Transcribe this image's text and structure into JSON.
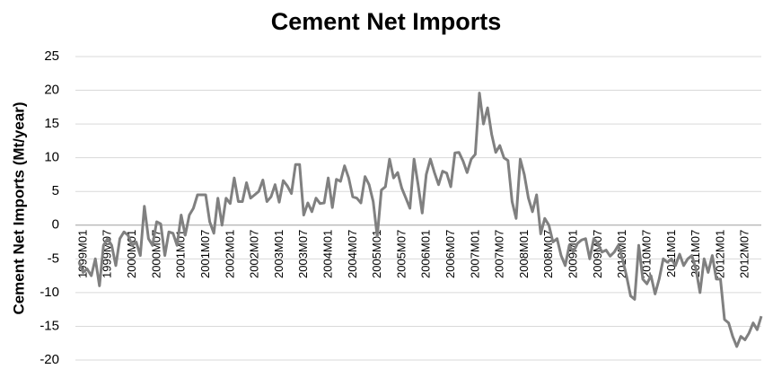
{
  "chart_data": {
    "type": "line",
    "title": "Cement Net Imports",
    "y_label": "Cement Net Imports (Mt/year)",
    "categories": [
      "1999M01",
      null,
      null,
      null,
      null,
      null,
      "1999M07",
      null,
      null,
      null,
      null,
      null,
      "2000M01",
      null,
      null,
      null,
      null,
      null,
      "2000M07",
      null,
      null,
      null,
      null,
      null,
      "2001M01",
      null,
      null,
      null,
      null,
      null,
      "2001M07",
      null,
      null,
      null,
      null,
      null,
      "2002M01",
      null,
      null,
      null,
      null,
      null,
      "2002M07",
      null,
      null,
      null,
      null,
      null,
      "2003M01",
      null,
      null,
      null,
      null,
      null,
      "2003M07",
      null,
      null,
      null,
      null,
      null,
      "2004M01",
      null,
      null,
      null,
      null,
      null,
      "2004M07",
      null,
      null,
      null,
      null,
      null,
      "2005M01",
      null,
      null,
      null,
      null,
      null,
      "2005M07",
      null,
      null,
      null,
      null,
      null,
      "2006M01",
      null,
      null,
      null,
      null,
      null,
      "2006M07",
      null,
      null,
      null,
      null,
      null,
      "2007M01",
      null,
      null,
      null,
      null,
      null,
      "2007M07",
      null,
      null,
      null,
      null,
      null,
      "2008M01",
      null,
      null,
      null,
      null,
      null,
      "2008M07",
      null,
      null,
      null,
      null,
      null,
      "2009M01",
      null,
      null,
      null,
      null,
      null,
      "2009M07",
      null,
      null,
      null,
      null,
      null,
      "2010M01",
      null,
      null,
      null,
      null,
      null,
      "2010M07",
      null,
      null,
      null,
      null,
      null,
      "2011M01",
      null,
      null,
      null,
      null,
      null,
      "2011M07",
      null,
      null,
      null,
      null,
      null,
      "2012M01",
      null,
      null,
      null,
      null,
      null,
      "2012M07",
      null,
      null,
      null,
      null,
      null
    ],
    "series": [
      {
        "name": "Cement Net Imports",
        "color": "#808080",
        "values": [
          -5.5,
          -7,
          -6.5,
          -7.5,
          -5,
          -9,
          -3,
          -2,
          -3,
          -6,
          -2,
          -1,
          -1.5,
          -3,
          -2.5,
          -4.5,
          2.8,
          -2,
          -3,
          0.5,
          0.2,
          -4.5,
          -1,
          -1.2,
          -3,
          1.5,
          -1.5,
          1.5,
          2.5,
          4.5,
          4.5,
          4.5,
          0.5,
          -1.2,
          4,
          0,
          4,
          3.2,
          7,
          3.5,
          3.5,
          6.3,
          4,
          4.5,
          5,
          6.7,
          3.5,
          4.2,
          6,
          3.4,
          6.6,
          5.8,
          4.7,
          9,
          9,
          1.5,
          3.3,
          2,
          4,
          3.2,
          3.3,
          7,
          2.6,
          6.8,
          6.5,
          8.8,
          7,
          4.2,
          4,
          3.3,
          7.2,
          6,
          3.5,
          -1.7,
          5.2,
          5.7,
          9.8,
          7,
          7.8,
          5.5,
          4,
          2.5,
          9.8,
          6,
          1.8,
          7.5,
          9.8,
          7.8,
          6,
          8,
          7.7,
          5.7,
          10.7,
          10.8,
          9.5,
          7.8,
          9.8,
          10.5,
          19.6,
          15,
          17.4,
          13.5,
          10.8,
          11.8,
          10,
          9.6,
          3.5,
          1,
          9.8,
          7.5,
          4,
          2,
          4.5,
          -1.3,
          1,
          0,
          -2.5,
          -2,
          -4.5,
          -6,
          -3,
          -4,
          -2.7,
          -2.2,
          -2,
          -5,
          -2,
          -2.7,
          -4,
          -3.7,
          -4.6,
          -4,
          -3,
          -5,
          -7.5,
          -10.5,
          -11,
          -3,
          -8,
          -8.7,
          -7.5,
          -10.2,
          -8,
          -5,
          -5.5,
          -5,
          -6,
          -4.3,
          -6,
          -5,
          -4.5,
          -6.5,
          -10,
          -5,
          -7,
          -4.5,
          -8,
          -8,
          -14,
          -14.5,
          -16.5,
          -18,
          -16.5,
          -17,
          -16,
          -14.5,
          -15.5,
          -13.5
        ]
      }
    ],
    "ylim": [
      -20,
      25
    ],
    "yticks": [
      -20,
      -15,
      -10,
      -5,
      0,
      5,
      10,
      15,
      20,
      25
    ],
    "grid": true
  }
}
